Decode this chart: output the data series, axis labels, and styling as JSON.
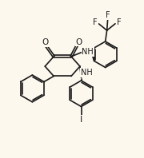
{
  "bg_color": "#fdf8ee",
  "bond_color": "#1a1a1a",
  "bond_lw": 1.2,
  "text_color": "#1a1a1a",
  "font_size": 6.5,
  "figsize": [
    1.8,
    1.98
  ],
  "dpi": 100,
  "xlim": [
    0,
    9
  ],
  "ylim": [
    0,
    9.9
  ],
  "ring_r": 0.85,
  "small_ring_r": 0.8,
  "cf3_ring_r": 0.78
}
